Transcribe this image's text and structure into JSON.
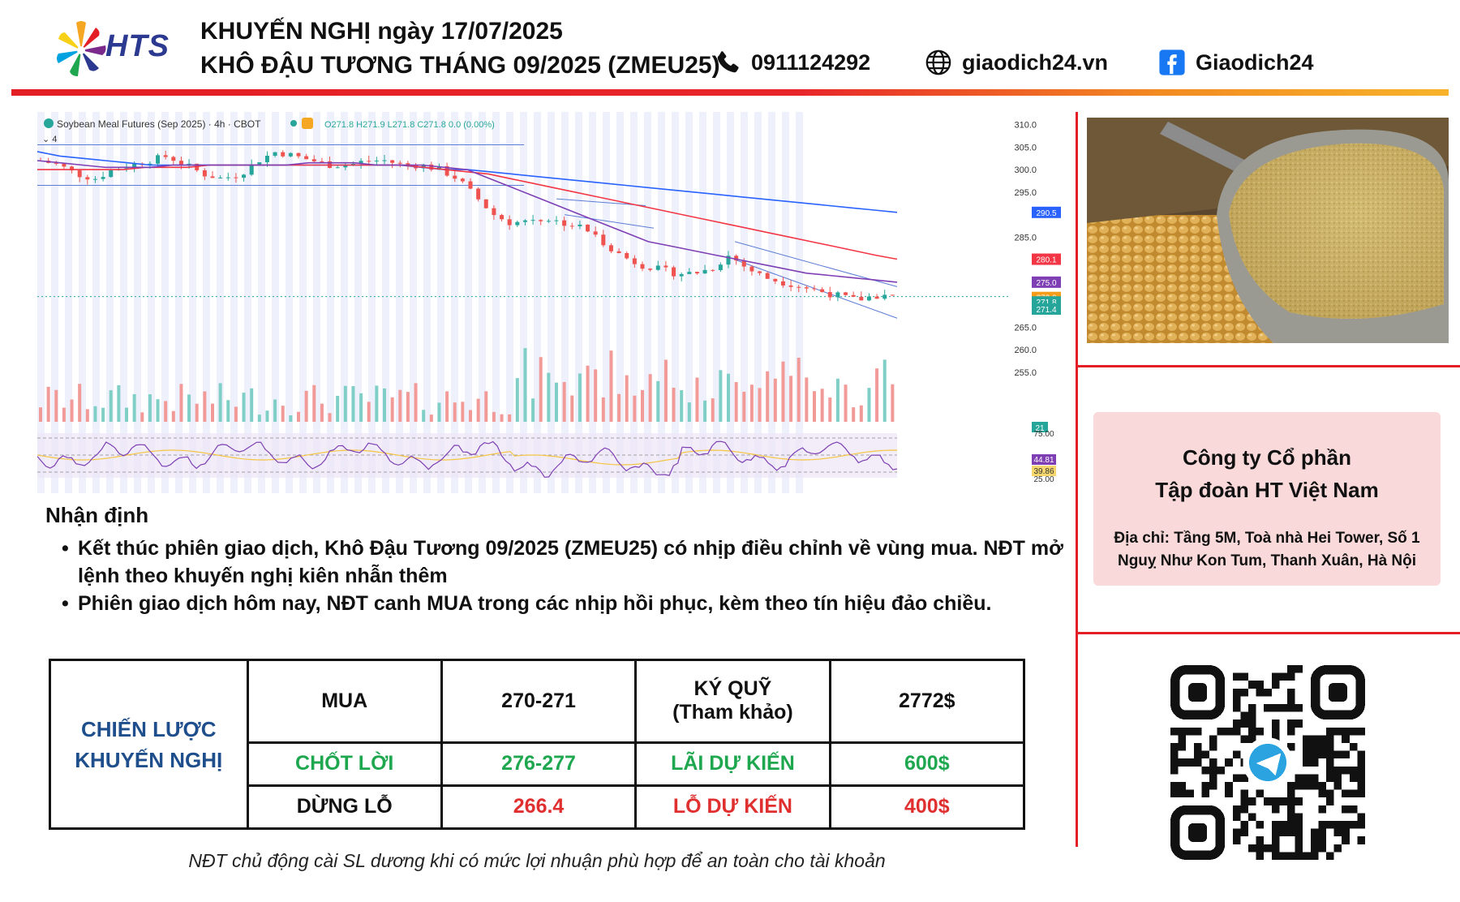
{
  "header": {
    "logo_text": "HTS",
    "title_line1": "KHUYẾN NGHỊ ngày 17/07/2025",
    "title_line2": "KHÔ ĐẬU TƯƠNG THÁNG 09/2025 (ZMEU25)",
    "phone": "0911124292",
    "website": "giaodich24.vn",
    "facebook": "Giaodich24"
  },
  "chart_data": {
    "type": "line",
    "title": "Soybean Meal Futures (Sep 2025) · 4h · CBOT",
    "ohlc_readout": "O271.8 H271.9 L271.8 C271.8 0.0 (0.00%)",
    "indicator_count": "4",
    "y_axis_ticks": [
      310.0,
      305.0,
      300.0,
      295.0,
      285.0,
      265.0,
      260.0,
      255.0
    ],
    "ylim": [
      253,
      311
    ],
    "price_labels": [
      {
        "value": "290.5",
        "color": "#2962ff"
      },
      {
        "value": "280.1",
        "color": "#f23645"
      },
      {
        "value": "275.0",
        "color": "#7e3fb4"
      },
      {
        "value": "272.0",
        "color": "#f59c1a"
      },
      {
        "value": "271.8",
        "color": "#26a69a"
      },
      {
        "value": "271.4",
        "color": "#26a69a"
      }
    ],
    "volume_label": "21",
    "rsi_labels": {
      "upper": "75.00",
      "value1": "44.81",
      "value2": "39.86",
      "lower": "25.00"
    },
    "series": [
      {
        "name": "close",
        "values": [
          302,
          301,
          299,
          298,
          300,
          301,
          302,
          303,
          301,
          299,
          298,
          299,
          302,
          304,
          303,
          302,
          301,
          301,
          302,
          302,
          301,
          301,
          300,
          298,
          294,
          290,
          288,
          289,
          289,
          288,
          287,
          284,
          281,
          279,
          278,
          277,
          277,
          278,
          281,
          278,
          276,
          275,
          274,
          273,
          272,
          271,
          272,
          271.8
        ]
      },
      {
        "name": "ma_blue",
        "values": [
          304,
          303,
          302.5,
          302,
          301.5,
          301,
          301,
          301,
          301,
          301,
          301,
          301,
          301,
          301,
          301,
          301,
          301,
          300.5,
          300,
          300,
          299.5,
          299,
          298.5,
          298,
          297.5,
          297,
          296.5,
          296,
          295.5,
          295,
          294.5,
          294,
          293.5,
          293,
          292.5,
          292,
          291.5,
          291,
          290.5
        ]
      },
      {
        "name": "ma_red",
        "values": [
          300,
          300,
          300,
          300,
          300,
          300.5,
          300.5,
          300.5,
          301,
          301,
          301,
          301,
          301,
          301,
          301,
          301,
          301,
          301,
          300.5,
          300,
          299.5,
          299,
          298,
          297,
          296,
          295,
          294,
          293,
          292,
          291,
          290,
          289,
          288,
          287,
          286,
          285,
          284,
          283,
          282,
          281,
          280.1
        ]
      },
      {
        "name": "ma_purple",
        "values": [
          302,
          301.5,
          301,
          300.5,
          300.5,
          300.5,
          301,
          301,
          301,
          301,
          301,
          301,
          301.5,
          301.5,
          301.5,
          301,
          301,
          301,
          300.5,
          300,
          298,
          296,
          294,
          292,
          290,
          288,
          286,
          284,
          283,
          282,
          281,
          280,
          279,
          278,
          277,
          276.5,
          276,
          275.5,
          275
        ]
      }
    ]
  },
  "analysis": {
    "heading": "Nhận định",
    "bullets": [
      "Kết thúc phiên giao dịch, Khô Đậu Tương 09/2025 (ZMEU25) có nhịp điều chỉnh về vùng mua. NĐT mở lệnh theo khuyến nghị kiên nhẫn thêm",
      "Phiên giao dịch hôm nay, NĐT canh MUA trong các nhịp hồi phục, kèm theo tín hiệu đảo chiều."
    ]
  },
  "strategy": {
    "label_line1": "CHIẾN LƯỢC",
    "label_line2": "KHUYẾN NGHỊ",
    "rows": [
      {
        "name": "MUA",
        "value": "270-271",
        "metric_line1": "KÝ QUỸ",
        "metric_line2": "(Tham khảo)",
        "amount": "2772$"
      },
      {
        "name": "CHỐT LỜI",
        "value": "276-277",
        "metric_line1": "LÃI DỰ KIẾN",
        "metric_line2": "",
        "amount": "600$"
      },
      {
        "name": "DỪNG LỖ",
        "value": "266.4",
        "metric_line1": "LỖ DỰ KIẾN",
        "metric_line2": "",
        "amount": "400$"
      }
    ],
    "note": "NĐT chủ động cài SL dương khi có mức lợi nhuận phù hợp để an toàn cho tài khoản"
  },
  "company": {
    "name_line1": "Công ty Cổ phần",
    "name_line2": "Tập đoàn HT Việt Nam",
    "address": "Địa chỉ: Tầng 5M, Toà nhà Hei Tower, Số 1 Nguỵ Như Kon Tum, Thanh Xuân, Hà Nội"
  },
  "colors": {
    "accent_red": "#e31e24",
    "brand_blue": "#2b3990",
    "green": "#1fa750",
    "red": "#e02f2f"
  },
  "icons": [
    "hts-logo",
    "phone-icon",
    "globe-icon",
    "facebook-icon",
    "telegram-icon",
    "qr-code"
  ]
}
